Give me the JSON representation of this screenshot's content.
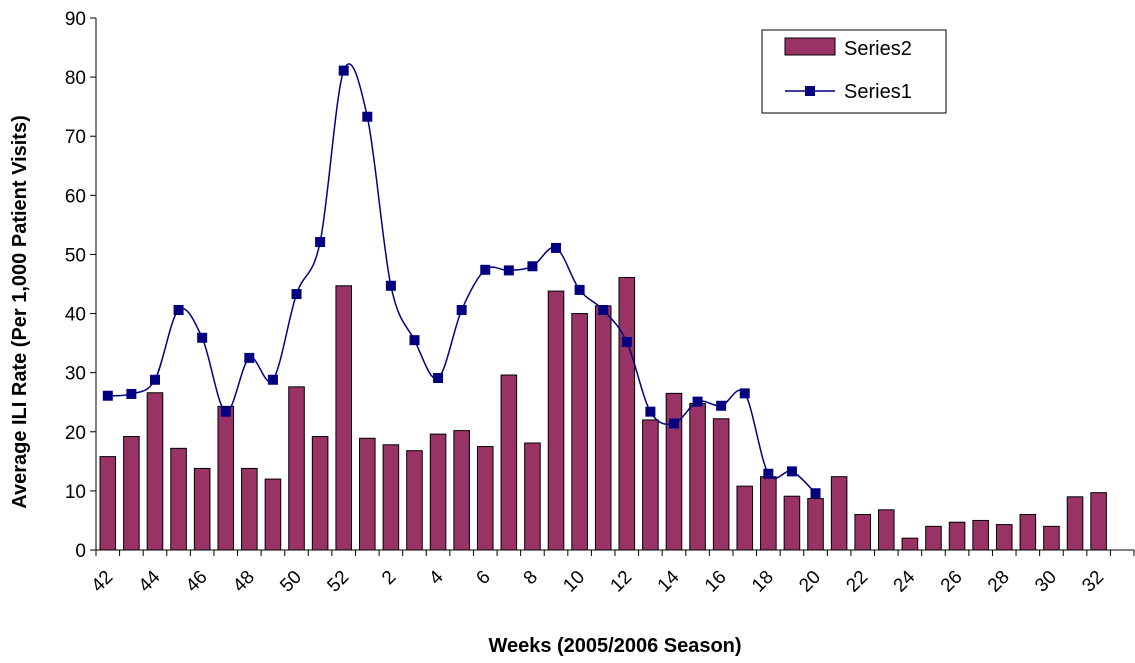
{
  "chart_data": {
    "type": "bar+line",
    "title": "",
    "xlabel": "Weeks (2005/2006 Season)",
    "ylabel": "Average ILI Rate (Per 1,000 Patient Visits)",
    "ylim": [
      0,
      90
    ],
    "yticks": [
      0,
      10,
      20,
      30,
      40,
      50,
      60,
      70,
      80,
      90
    ],
    "grid": false,
    "legend_position": "top-right",
    "categories": [
      "42",
      "43",
      "44",
      "45",
      "46",
      "47",
      "48",
      "49",
      "50",
      "51",
      "52",
      "1",
      "2",
      "3",
      "4",
      "5",
      "6",
      "7",
      "8",
      "9",
      "10",
      "11",
      "12",
      "13",
      "14",
      "15",
      "16",
      "17",
      "18",
      "19",
      "20",
      "21",
      "22",
      "23",
      "24",
      "25",
      "26",
      "27",
      "28",
      "29",
      "30",
      "31",
      "32",
      "33"
    ],
    "x_tick_labels": [
      "42",
      "44",
      "46",
      "48",
      "50",
      "52",
      "2",
      "4",
      "6",
      "8",
      "10",
      "12",
      "14",
      "16",
      "18",
      "20",
      "22",
      "24",
      "26",
      "28",
      "30",
      "32"
    ],
    "series": [
      {
        "name": "Series2",
        "kind": "bar",
        "color": "#993366",
        "values": [
          15.8,
          19.2,
          26.6,
          17.2,
          13.8,
          24.3,
          13.8,
          12.0,
          27.6,
          19.2,
          44.7,
          18.9,
          17.8,
          16.8,
          19.6,
          20.2,
          17.5,
          29.6,
          18.1,
          43.8,
          40.0,
          41.3,
          46.1,
          22.0,
          26.5,
          24.8,
          22.2,
          10.8,
          12.4,
          9.1,
          8.7,
          12.4,
          6.0,
          6.8,
          2.0,
          4.0,
          4.7,
          5.0,
          4.3,
          6.0,
          4.0,
          9.0,
          9.7,
          null
        ]
      },
      {
        "name": "Series1",
        "kind": "line",
        "color": "#000080",
        "values": [
          26.1,
          26.4,
          28.8,
          40.6,
          35.9,
          23.4,
          32.5,
          28.8,
          43.3,
          52.1,
          81.1,
          73.3,
          44.7,
          35.5,
          29.1,
          40.6,
          47.4,
          47.3,
          48.0,
          51.1,
          44.0,
          40.6,
          35.2,
          23.4,
          21.4,
          25.1,
          24.4,
          26.5,
          12.9,
          13.3,
          9.6,
          null,
          null,
          null,
          null,
          null,
          null,
          null,
          null,
          null,
          null,
          null,
          null,
          null
        ]
      }
    ]
  }
}
